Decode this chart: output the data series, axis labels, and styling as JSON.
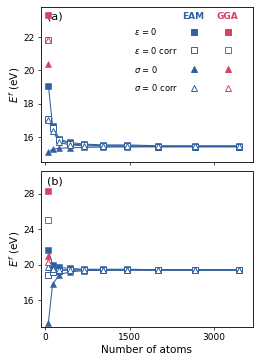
{
  "panel_a": {
    "title": "(a)",
    "ylabel": "$E^f$ (eV)",
    "ylim": [
      14.5,
      23.8
    ],
    "yticks": [
      16,
      18,
      20,
      22
    ],
    "eam": {
      "eps0_x": [
        54,
        128,
        250,
        432,
        686,
        1024,
        1458,
        2000,
        2662,
        3456
      ],
      "eps0_y": [
        19.1,
        16.7,
        15.9,
        15.7,
        15.6,
        15.55,
        15.55,
        15.5,
        15.5,
        15.5
      ],
      "eps0corr_x": [
        54,
        128,
        250,
        432,
        686,
        1024,
        1458,
        2000,
        2662,
        3456
      ],
      "eps0corr_y": [
        17.1,
        16.55,
        15.85,
        15.6,
        15.55,
        15.5,
        15.5,
        15.45,
        15.45,
        15.45
      ],
      "sig0_x": [
        54,
        128,
        250,
        432,
        686,
        1024,
        1458,
        2000,
        2662,
        3456
      ],
      "sig0_y": [
        15.1,
        15.3,
        15.35,
        15.38,
        15.4,
        15.42,
        15.43,
        15.43,
        15.43,
        15.43
      ],
      "sig0corr_x": [
        54,
        128,
        250,
        432,
        686,
        1024,
        1458,
        2000,
        2662,
        3456
      ],
      "sig0corr_y": [
        17.05,
        16.4,
        15.7,
        15.55,
        15.5,
        15.48,
        15.46,
        15.46,
        15.46,
        15.46
      ]
    },
    "gga": {
      "eps0_x": [
        54
      ],
      "eps0_y": [
        23.3
      ],
      "eps0corr_x": [
        54
      ],
      "eps0corr_y": [
        21.85
      ],
      "sig0_x": [
        54
      ],
      "sig0_y": [
        20.4
      ],
      "sig0corr_x": [
        54
      ],
      "sig0corr_y": [
        21.85
      ]
    }
  },
  "panel_b": {
    "title": "(b)",
    "ylabel": "$E^f$ (eV)",
    "ylim": [
      13.0,
      30.5
    ],
    "yticks": [
      16,
      20,
      24,
      28
    ],
    "eam": {
      "eps0_x": [
        54,
        128,
        250,
        432,
        686,
        1024,
        1458,
        2000,
        2662,
        3456
      ],
      "eps0_y": [
        21.7,
        20.0,
        19.7,
        19.6,
        19.5,
        19.5,
        19.5,
        19.45,
        19.45,
        19.45
      ],
      "eps0corr_x": [
        54,
        128,
        250,
        432,
        686,
        1024,
        1458,
        2000,
        2662,
        3456
      ],
      "eps0corr_y": [
        18.8,
        19.2,
        19.35,
        19.4,
        19.42,
        19.42,
        19.42,
        19.42,
        19.42,
        19.42
      ],
      "sig0_x": [
        54,
        128,
        250,
        432,
        686,
        1024,
        1458,
        2000,
        2662,
        3456
      ],
      "sig0_y": [
        13.5,
        17.8,
        18.9,
        19.2,
        19.35,
        19.4,
        19.4,
        19.4,
        19.4,
        19.4
      ],
      "sig0corr_x": [
        54,
        128,
        250,
        432,
        686,
        1024,
        1458,
        2000,
        2662,
        3456
      ],
      "sig0corr_y": [
        19.8,
        19.5,
        19.45,
        19.43,
        19.42,
        19.42,
        19.42,
        19.42,
        19.42,
        19.42
      ]
    },
    "gga": {
      "eps0_x": [
        54
      ],
      "eps0_y": [
        28.3
      ],
      "eps0corr_x": [
        54
      ],
      "eps0corr_y": [
        25.0
      ],
      "sig0_x": [
        54
      ],
      "sig0_y": [
        21.0
      ],
      "sig0corr_x": [
        54
      ],
      "sig0corr_y": [
        20.3
      ]
    }
  },
  "xlabel": "Number of atoms",
  "xlim": [
    -80,
    3700
  ],
  "xticks": [
    0,
    1500,
    3000
  ],
  "xtick_labels": [
    "0",
    "1500",
    "3000"
  ],
  "eam_color": "#3060a0",
  "gga_color": "#d94060",
  "legend_fontsize": 6.0,
  "tick_fontsize": 6.5,
  "label_fontsize": 7.5
}
